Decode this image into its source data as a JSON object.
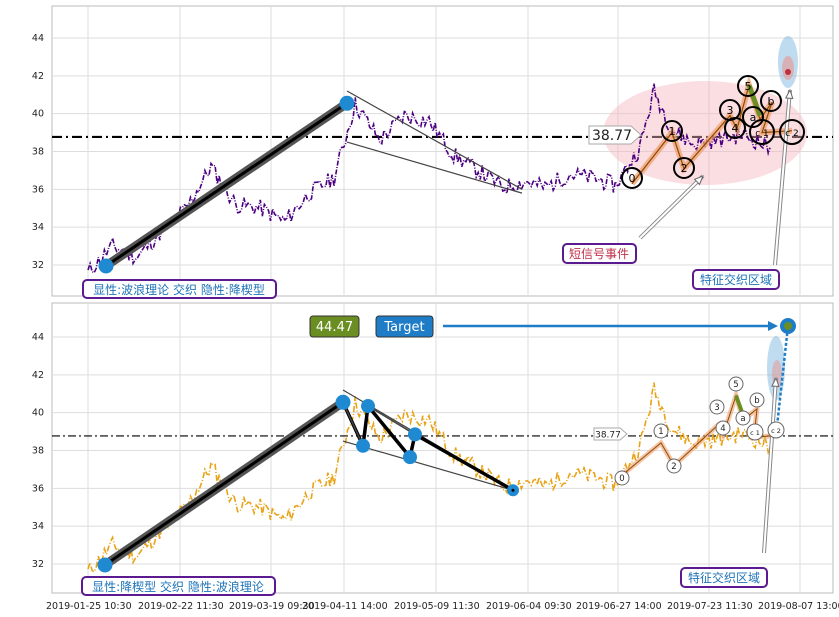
{
  "chart_data": [
    {
      "type": "line",
      "panel": "top",
      "ylim": [
        30.4,
        45.7
      ],
      "yticks": [
        32,
        34,
        36,
        38,
        40,
        42,
        44
      ],
      "reference_value": 38.77,
      "reference_label": "38.77",
      "price_color": "#4b0082",
      "legend_box": "显性:波浪理论 交织 隐性:降楔型",
      "annotations": [
        "短信号事件",
        "特征交织区域"
      ],
      "wave_labels": [
        "0",
        "1",
        "2",
        "3",
        "4",
        "5",
        "a",
        "b",
        "c 1",
        "c 2"
      ],
      "price_points": [
        [
          "2019-01-25",
          31.6
        ],
        [
          "2019-02-01",
          33.0
        ],
        [
          "2019-02-08",
          32.4
        ],
        [
          "2019-02-15",
          33.8
        ],
        [
          "2019-02-22",
          35.0
        ],
        [
          "2019-03-01",
          37.2
        ],
        [
          "2019-03-08",
          35.2
        ],
        [
          "2019-03-15",
          35.0
        ],
        [
          "2019-03-22",
          34.3
        ],
        [
          "2019-03-29",
          35.8
        ],
        [
          "2019-04-05",
          36.6
        ],
        [
          "2019-04-11",
          40.5
        ],
        [
          "2019-04-18",
          38.6
        ],
        [
          "2019-04-25",
          39.9
        ],
        [
          "2019-05-02",
          39.6
        ],
        [
          "2019-05-09",
          37.8
        ],
        [
          "2019-05-16",
          37.0
        ],
        [
          "2019-05-23",
          36.1
        ],
        [
          "2019-05-30",
          36.4
        ],
        [
          "2019-06-04",
          36.1
        ],
        [
          "2019-06-11",
          36.8
        ],
        [
          "2019-06-18",
          36.6
        ],
        [
          "2019-06-24",
          36.2
        ],
        [
          "2019-07-01",
          38.2
        ],
        [
          "2019-07-05",
          41.2
        ],
        [
          "2019-07-10",
          39.2
        ],
        [
          "2019-07-16",
          38.4
        ],
        [
          "2019-07-23",
          38.6
        ],
        [
          "2019-07-30",
          38.9
        ],
        [
          "2019-08-05",
          38.4
        ],
        [
          "2019-08-07",
          38.2
        ]
      ]
    },
    {
      "type": "line",
      "panel": "bottom",
      "ylim": [
        30.4,
        45.7
      ],
      "yticks": [
        32,
        34,
        36,
        38,
        40,
        42,
        44
      ],
      "reference_value": 38.77,
      "reference_label": "38.77",
      "price_color": "#e8a317",
      "legend_box": "显性:降楔型 交织 隐性:波浪理论",
      "annotations": [
        "特征交织区域"
      ],
      "target_value": "44.47",
      "target_label": "Target",
      "wave_labels": [
        "0",
        "1",
        "2",
        "3",
        "4",
        "5",
        "a",
        "b",
        "c 1",
        "c 2"
      ],
      "x_tick_labels": [
        "2019-01-25 10:30",
        "2019-02-22 11:30",
        "2019-03-19 09:30",
        "2019-04-11 14:00",
        "2019-05-09 11:30",
        "2019-06-04 09:30",
        "2019-06-27 14:00",
        "2019-07-23 11:30",
        "2019-08-07 13:00"
      ]
    }
  ],
  "colors": {
    "top_price": "#4b0082",
    "bottom_price": "#e8a317",
    "node_blue": "#1f8ad1",
    "box_border": "#5b1a8f",
    "box_text": "#1e73b8",
    "annotation_text": "#c0304a",
    "target_green": "#6b8e23",
    "target_blue": "#1f7dc7"
  }
}
